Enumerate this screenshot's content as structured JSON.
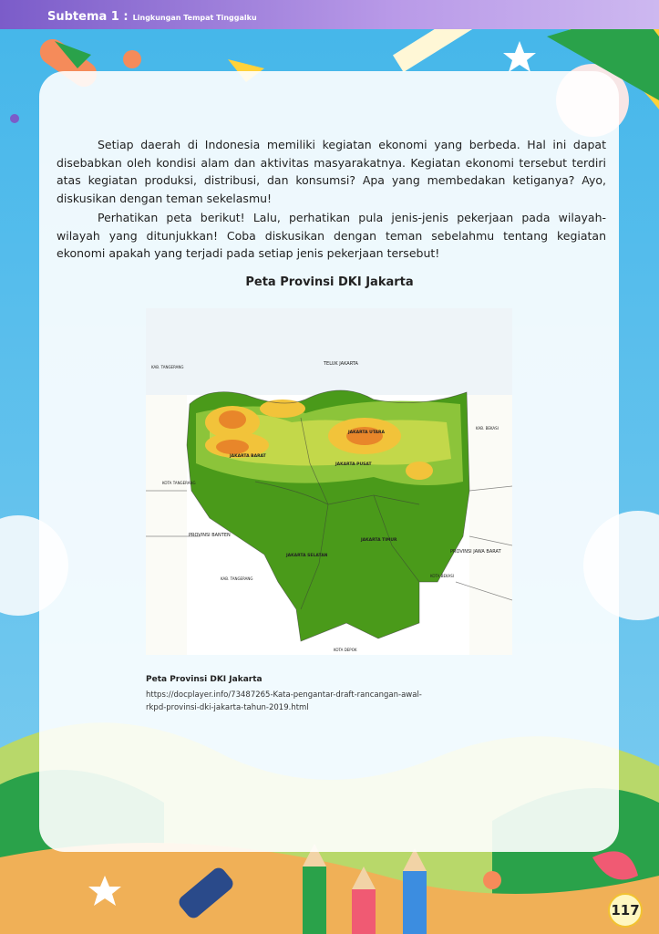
{
  "header": {
    "subtema_label": "Subtema 1 :",
    "subtema_title": "Lingkungan Tempat Tinggalku"
  },
  "paragraphs": {
    "p1": "Setiap daerah di Indonesia memiliki kegiatan ekonomi yang berbeda. Hal ini dapat disebabkan oleh kondisi alam dan aktivitas masyarakatnya. Kegiatan ekonomi tersebut terdiri atas kegiatan produksi, distribusi, dan konsumsi? Apa yang membedakan ketiganya? Ayo, diskusikan dengan teman sekelasmu!",
    "p2": "Perhatikan peta berikut! Lalu, perhatikan pula jenis-jenis pekerjaan pada wilayah-wilayah yang ditunjukkan! Coba diskusikan dengan teman sebelahmu tentang kegiatan ekonomi apakah yang terjadi pada setiap jenis pekerjaan tersebut!"
  },
  "map": {
    "title": "Peta Provinsi DKI Jakarta",
    "labels": {
      "teluk": "TELUK JAKARTA",
      "kab_tangerang_top": "KAB. TANGERANG",
      "kab_bekasi": "KAB. BEKASI",
      "kota_tangerang": "KOTA TANGERANG",
      "jakarta_utara": "JAKARTA UTARA",
      "jakarta_barat": "JAKARTA BARAT",
      "jakarta_pusat": "JAKARTA PUSAT",
      "provinsi_banten": "PROVINSI BANTEN",
      "jakarta_timur": "JAKARTA TIMUR",
      "jakarta_selatan": "JAKARTA SELATAN",
      "provinsi_jawa_barat": "PROVINSI JAWA BARAT",
      "kab_tangerang_bottom": "KAB. TANGERANG",
      "kota_bekasi": "KOTA BEKASI",
      "kota_depok": "KOTA DEPOK"
    }
  },
  "caption": {
    "title": "Peta Provinsi DKI Jakarta",
    "source": "https://docplayer.info/73487265-Kata-pengantar-draft-rancangan-awal-rkpd-provinsi-dki-jakarta-tahun-2019.html"
  },
  "page_number": "117",
  "colors": {
    "header": "#7b5cc9",
    "sky": "#3fb0e8",
    "map_green": "#4a9a1a",
    "map_orange": "#e8862a"
  }
}
